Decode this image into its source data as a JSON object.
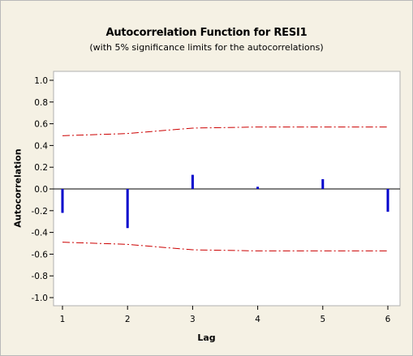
{
  "chart_data": {
    "type": "bar",
    "title": "Autocorrelation Function for RESI1",
    "subtitle": "(with 5% significance limits for the autocorrelations)",
    "xlabel": "Lag",
    "ylabel": "Autocorrelation",
    "x": [
      1,
      2,
      3,
      4,
      5,
      6
    ],
    "values": [
      -0.22,
      -0.36,
      0.13,
      0.02,
      0.09,
      -0.21
    ],
    "significance_limits": [
      0.49,
      0.51,
      0.56,
      0.57,
      0.57,
      0.57
    ],
    "ylim": [
      -1.0,
      1.0
    ],
    "xlim": [
      1,
      6
    ],
    "y_ticks": [
      "1.0",
      "0.8",
      "0.6",
      "0.4",
      "0.2",
      "0.0",
      "-0.2",
      "-0.4",
      "-0.6",
      "-0.8",
      "-1.0"
    ],
    "x_ticks": [
      "1",
      "2",
      "3",
      "4",
      "5",
      "6"
    ],
    "bar_color": "#0000cc",
    "limit_color": "#cc0000",
    "grid": false
  }
}
